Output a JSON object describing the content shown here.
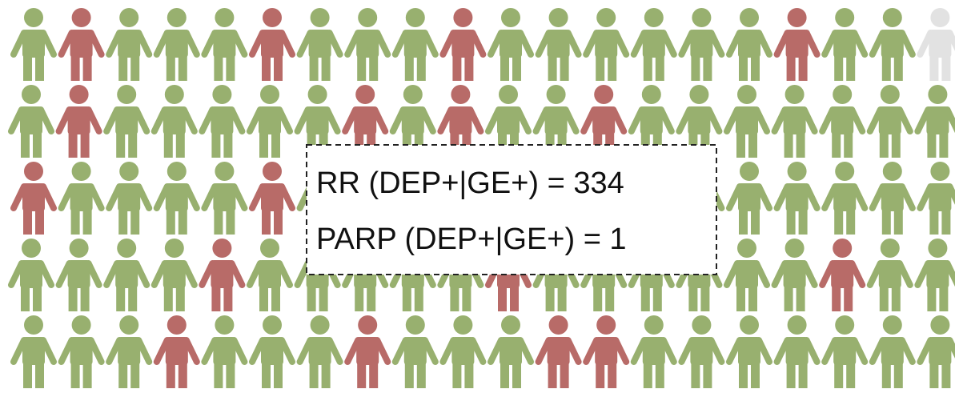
{
  "box": {
    "lines": [
      "RR (DEP+|GE+) = 334",
      "PARP (DEP+|GE+) = 1"
    ]
  }
}
